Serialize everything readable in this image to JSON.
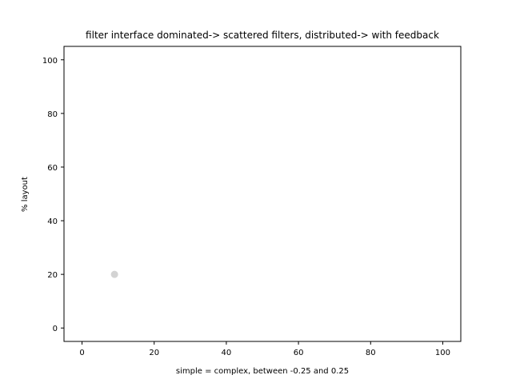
{
  "chart_data": {
    "type": "scatter",
    "title": "filter interface dominated-> scattered filters, distributed-> with feedback",
    "xlabel": "simple = complex, between -0.25 and 0.25",
    "ylabel": "% layout",
    "xlim": [
      -5,
      105
    ],
    "ylim": [
      -5,
      105
    ],
    "xticks": [
      "0",
      "20",
      "40",
      "60",
      "80",
      "100"
    ],
    "yticks": [
      "0",
      "20",
      "40",
      "60",
      "80",
      "100"
    ],
    "grid": false,
    "points": [
      {
        "x": 9,
        "y": 20
      }
    ],
    "point_color": "#d3d3d3"
  }
}
